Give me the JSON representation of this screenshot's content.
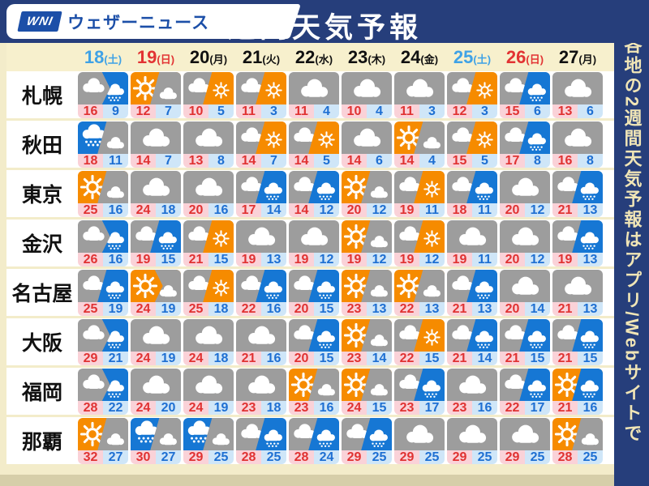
{
  "header": {
    "logo_mark": "WNI",
    "logo_name": "ウェザーニュース",
    "title": "週間天気予報"
  },
  "side_note": "各地の2週間天気予報はアプリ/Webサイトで",
  "colors": {
    "navy": "#263e7b",
    "cream_page": "#f3ecca",
    "date_band": "#f7f0cd",
    "tan_strip": "#d6cea9",
    "icon_gray": "#9d9d9d",
    "icon_orange": "#f68b00",
    "icon_rain_blue": "#1677d4",
    "high_temp_text": "#e03232",
    "high_temp_bg": "#fad2d8",
    "low_temp_text": "#1e6fd2",
    "low_temp_bg": "#cfe6f8",
    "saturday": "#3fa2e6",
    "sunday": "#e23333",
    "logo_blue": "#1c4fa8",
    "sidebar_text": "#f0e5b6"
  },
  "legend": {
    "c": "cloudy",
    "s": "sunny",
    "r": "rain",
    "x/y": "left condition later right condition (diagonal split icon)",
    "x>y": "left condition then right condition (arrow split icon)"
  },
  "chart_data": {
    "type": "table",
    "title": "週間天気予報",
    "columns": [
      {
        "day": "18",
        "weekday": "(土)",
        "color": "saturday"
      },
      {
        "day": "19",
        "weekday": "(日)",
        "color": "sunday"
      },
      {
        "day": "20",
        "weekday": "(月)",
        "color": "black"
      },
      {
        "day": "21",
        "weekday": "(火)",
        "color": "black"
      },
      {
        "day": "22",
        "weekday": "(水)",
        "color": "black"
      },
      {
        "day": "23",
        "weekday": "(木)",
        "color": "black"
      },
      {
        "day": "24",
        "weekday": "(金)",
        "color": "black"
      },
      {
        "day": "25",
        "weekday": "(土)",
        "color": "saturday"
      },
      {
        "day": "26",
        "weekday": "(日)",
        "color": "sunday"
      },
      {
        "day": "27",
        "weekday": "(月)",
        "color": "black"
      }
    ],
    "rows": [
      {
        "city": "札幌",
        "cells": [
          [
            "c>r",
            16,
            9
          ],
          [
            "s/c",
            12,
            7
          ],
          [
            "c/s",
            10,
            5
          ],
          [
            "c/s",
            11,
            3
          ],
          [
            "c",
            11,
            4
          ],
          [
            "c",
            10,
            4
          ],
          [
            "c",
            11,
            3
          ],
          [
            "c/s",
            12,
            3
          ],
          [
            "c/r",
            15,
            6
          ],
          [
            "c",
            13,
            6
          ]
        ]
      },
      {
        "city": "秋田",
        "cells": [
          [
            "r/c",
            18,
            11
          ],
          [
            "c",
            14,
            7
          ],
          [
            "c",
            13,
            8
          ],
          [
            "c/s",
            14,
            7
          ],
          [
            "c/s",
            14,
            5
          ],
          [
            "c",
            14,
            6
          ],
          [
            "s/c",
            14,
            4
          ],
          [
            "c/s",
            15,
            5
          ],
          [
            "c/r",
            17,
            8
          ],
          [
            "c",
            16,
            8
          ]
        ]
      },
      {
        "city": "東京",
        "cells": [
          [
            "s/c",
            25,
            16
          ],
          [
            "c",
            24,
            18
          ],
          [
            "c",
            20,
            16
          ],
          [
            "c/r",
            17,
            14
          ],
          [
            "c/r",
            14,
            12
          ],
          [
            "s/c",
            20,
            12
          ],
          [
            "c/s",
            19,
            11
          ],
          [
            "c/r",
            18,
            11
          ],
          [
            "c",
            20,
            12
          ],
          [
            "c/r",
            21,
            13
          ]
        ]
      },
      {
        "city": "金沢",
        "cells": [
          [
            "c>r",
            26,
            16
          ],
          [
            "c/r",
            19,
            15
          ],
          [
            "c/s",
            21,
            15
          ],
          [
            "c",
            19,
            13
          ],
          [
            "c",
            19,
            12
          ],
          [
            "s/c",
            19,
            12
          ],
          [
            "c/s",
            19,
            12
          ],
          [
            "c",
            19,
            11
          ],
          [
            "c",
            20,
            12
          ],
          [
            "c/r",
            19,
            13
          ]
        ]
      },
      {
        "city": "名古屋",
        "cells": [
          [
            "c/r",
            25,
            19
          ],
          [
            "s>c",
            24,
            19
          ],
          [
            "c/s",
            25,
            18
          ],
          [
            "c/r",
            22,
            16
          ],
          [
            "c/r",
            20,
            15
          ],
          [
            "s/c",
            23,
            13
          ],
          [
            "s/c",
            22,
            13
          ],
          [
            "c/r",
            21,
            13
          ],
          [
            "c",
            20,
            14
          ],
          [
            "c",
            21,
            13
          ]
        ]
      },
      {
        "city": "大阪",
        "cells": [
          [
            "c>r",
            29,
            21
          ],
          [
            "c",
            24,
            19
          ],
          [
            "c",
            24,
            18
          ],
          [
            "c",
            21,
            16
          ],
          [
            "c/r",
            20,
            15
          ],
          [
            "s/c",
            23,
            14
          ],
          [
            "c/s",
            22,
            15
          ],
          [
            "c/r",
            21,
            14
          ],
          [
            "c/r",
            21,
            15
          ],
          [
            "c/r",
            21,
            15
          ]
        ]
      },
      {
        "city": "福岡",
        "cells": [
          [
            "c>r",
            28,
            22
          ],
          [
            "c",
            24,
            20
          ],
          [
            "c",
            24,
            19
          ],
          [
            "c",
            23,
            18
          ],
          [
            "s/c",
            23,
            16
          ],
          [
            "s/c",
            24,
            15
          ],
          [
            "c/r",
            23,
            17
          ],
          [
            "c",
            23,
            16
          ],
          [
            "c/r",
            22,
            17
          ],
          [
            "s/r",
            21,
            16
          ]
        ]
      },
      {
        "city": "那覇",
        "cells": [
          [
            "s/c",
            32,
            27
          ],
          [
            "r/c",
            30,
            27
          ],
          [
            "r/c",
            29,
            25
          ],
          [
            "c/r",
            28,
            25
          ],
          [
            "c/r",
            28,
            24
          ],
          [
            "c/r",
            29,
            25
          ],
          [
            "c",
            29,
            25
          ],
          [
            "c",
            29,
            25
          ],
          [
            "c",
            29,
            25
          ],
          [
            "s/c",
            28,
            25
          ]
        ]
      }
    ]
  }
}
